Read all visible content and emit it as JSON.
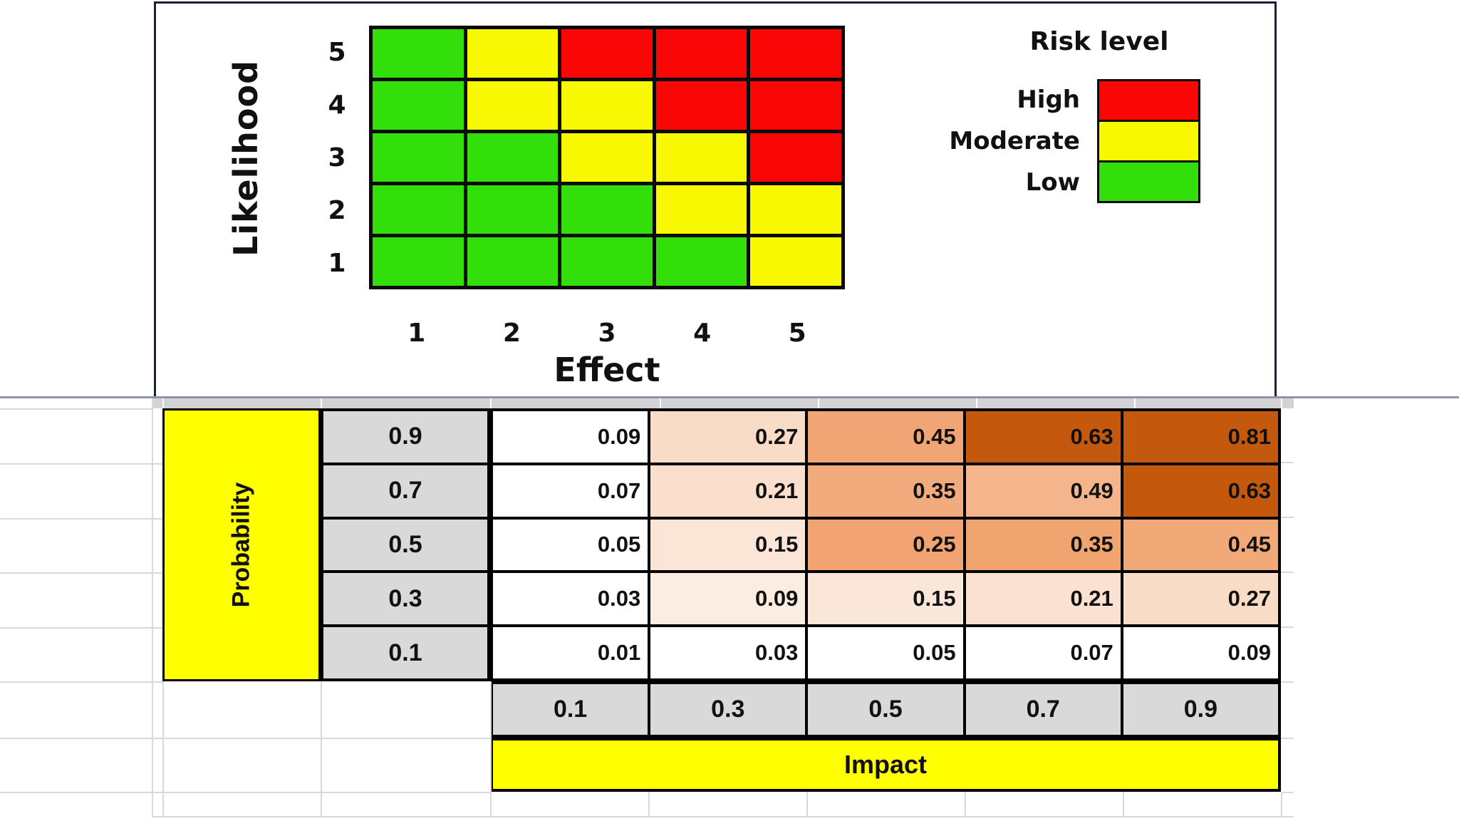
{
  "chart": {
    "y_axis_title": "Likelihood",
    "x_axis_title": "Effect",
    "y_ticks": [
      "5",
      "4",
      "3",
      "2",
      "1"
    ],
    "x_ticks": [
      "1",
      "2",
      "3",
      "4",
      "5"
    ],
    "risk_colors": {
      "low": "#33df0a",
      "moderate": "#f8f803",
      "high": "#fb0606"
    },
    "matrix_rows_top_to_bottom": [
      [
        "low",
        "moderate",
        "high",
        "high",
        "high"
      ],
      [
        "low",
        "moderate",
        "moderate",
        "high",
        "high"
      ],
      [
        "low",
        "low",
        "moderate",
        "moderate",
        "high"
      ],
      [
        "low",
        "low",
        "low",
        "moderate",
        "moderate"
      ],
      [
        "low",
        "low",
        "low",
        "low",
        "moderate"
      ]
    ],
    "legend": {
      "title": "Risk level",
      "entries": [
        {
          "label": "High",
          "key": "high"
        },
        {
          "label": "Moderate",
          "key": "moderate"
        },
        {
          "label": "Low",
          "key": "low"
        }
      ]
    }
  },
  "table": {
    "probability_label": "Probability",
    "impact_label": "Impact",
    "col_headers": [
      "0.1",
      "0.3",
      "0.5",
      "0.7",
      "0.9"
    ],
    "header_bg": "#d9d9d9",
    "label_bg": "#ffff00",
    "rows": [
      {
        "header": "0.9",
        "cells": [
          {
            "v": "0.09",
            "bg": "#ffffff"
          },
          {
            "v": "0.27",
            "bg": "#f9dcc7"
          },
          {
            "v": "0.45",
            "bg": "#f1a574"
          },
          {
            "v": "0.63",
            "bg": "#c4590e"
          },
          {
            "v": "0.81",
            "bg": "#c4590e"
          }
        ]
      },
      {
        "header": "0.7",
        "cells": [
          {
            "v": "0.07",
            "bg": "#ffffff"
          },
          {
            "v": "0.21",
            "bg": "#f9dfcc"
          },
          {
            "v": "0.35",
            "bg": "#f2ab7d"
          },
          {
            "v": "0.49",
            "bg": "#f4b58d"
          },
          {
            "v": "0.63",
            "bg": "#c4590e"
          }
        ]
      },
      {
        "header": "0.5",
        "cells": [
          {
            "v": "0.05",
            "bg": "#ffffff"
          },
          {
            "v": "0.15",
            "bg": "#fbe5d6"
          },
          {
            "v": "0.25",
            "bg": "#f1a372"
          },
          {
            "v": "0.35",
            "bg": "#f0a571"
          },
          {
            "v": "0.45",
            "bg": "#f2a978"
          }
        ]
      },
      {
        "header": "0.3",
        "cells": [
          {
            "v": "0.03",
            "bg": "#ffffff"
          },
          {
            "v": "0.09",
            "bg": "#fcede3"
          },
          {
            "v": "0.15",
            "bg": "#fbe7d9"
          },
          {
            "v": "0.21",
            "bg": "#fae1d1"
          },
          {
            "v": "0.27",
            "bg": "#f8dcc6"
          }
        ]
      },
      {
        "header": "0.1",
        "cells": [
          {
            "v": "0.01",
            "bg": "#ffffff"
          },
          {
            "v": "0.03",
            "bg": "#ffffff"
          },
          {
            "v": "0.05",
            "bg": "#ffffff"
          },
          {
            "v": "0.07",
            "bg": "#ffffff"
          },
          {
            "v": "0.09",
            "bg": "#ffffff"
          }
        ]
      }
    ]
  },
  "chart_data": [
    {
      "type": "heatmap",
      "title": "Risk level matrix",
      "xlabel": "Effect",
      "ylabel": "Likelihood",
      "x": [
        1,
        2,
        3,
        4,
        5
      ],
      "y": [
        5,
        4,
        3,
        2,
        1
      ],
      "rows_top_to_bottom": [
        [
          "Low",
          "Moderate",
          "High",
          "High",
          "High"
        ],
        [
          "Low",
          "Moderate",
          "Moderate",
          "High",
          "High"
        ],
        [
          "Low",
          "Low",
          "Moderate",
          "Moderate",
          "High"
        ],
        [
          "Low",
          "Low",
          "Low",
          "Moderate",
          "Moderate"
        ],
        [
          "Low",
          "Low",
          "Low",
          "Low",
          "Moderate"
        ]
      ],
      "legend_title": "Risk level",
      "legend": [
        "High",
        "Moderate",
        "Low"
      ],
      "legend_position": "right",
      "grid": true
    },
    {
      "type": "heatmap",
      "title": "Probability x Impact risk scores",
      "xlabel": "Impact",
      "ylabel": "Probability",
      "x": [
        0.1,
        0.3,
        0.5,
        0.7,
        0.9
      ],
      "y": [
        0.9,
        0.7,
        0.5,
        0.3,
        0.1
      ],
      "values": [
        [
          0.09,
          0.27,
          0.45,
          0.63,
          0.81
        ],
        [
          0.07,
          0.21,
          0.35,
          0.49,
          0.63
        ],
        [
          0.05,
          0.15,
          0.25,
          0.35,
          0.45
        ],
        [
          0.03,
          0.09,
          0.15,
          0.21,
          0.27
        ],
        [
          0.01,
          0.03,
          0.05,
          0.07,
          0.09
        ]
      ]
    }
  ]
}
